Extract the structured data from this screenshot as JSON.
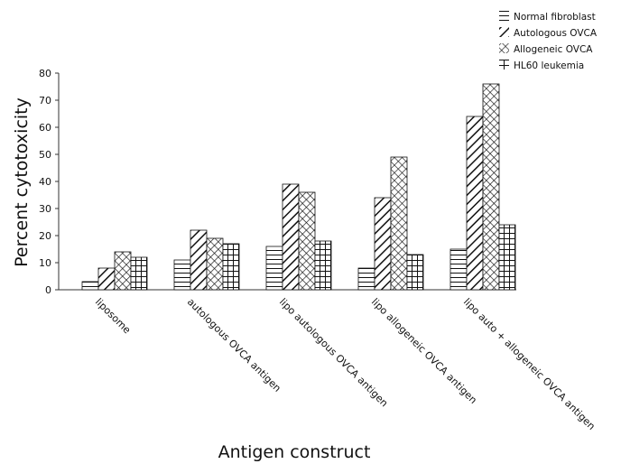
{
  "chart_data": {
    "type": "bar",
    "title": "",
    "xlabel": "Antigen construct",
    "ylabel": "Percent cytotoxicity",
    "ylim": [
      0,
      80
    ],
    "yticks": [
      0,
      10,
      20,
      30,
      40,
      50,
      60,
      70,
      80
    ],
    "grid": false,
    "legend_position": "top-right",
    "categories": [
      "liposome",
      "autologous OVCA antigen",
      "lipo autologous OVCA antigen",
      "lipo allogeneic OVCA antigen",
      "lipo auto + allogeneic OVCA antigen"
    ],
    "series": [
      {
        "name": "Normal fibroblast",
        "pattern": "horizontal-lines",
        "values": [
          3,
          11,
          16,
          8,
          15
        ]
      },
      {
        "name": "Autologous OVCA",
        "pattern": "diagonal-lines",
        "values": [
          8,
          22,
          39,
          34,
          64
        ]
      },
      {
        "name": "Allogeneic OVCA",
        "pattern": "crosshatch-diagonal",
        "values": [
          14,
          19,
          36,
          49,
          76
        ]
      },
      {
        "name": "HL60 leukemia",
        "pattern": "grid",
        "values": [
          12,
          17,
          18,
          13,
          24
        ]
      }
    ],
    "colors": {
      "bar_stroke": "#111111",
      "bar_fill": "#ffffff",
      "axis": "#333333"
    }
  }
}
